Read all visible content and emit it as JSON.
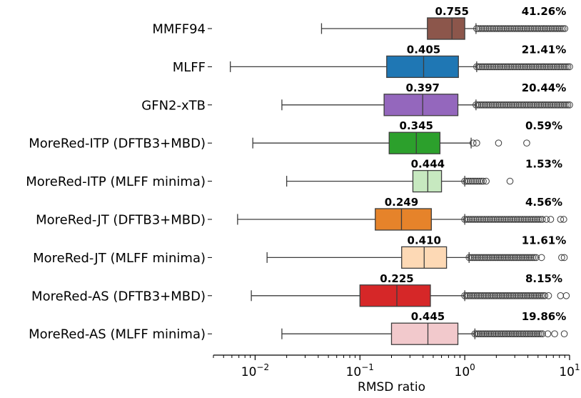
{
  "chart_data": {
    "type": "boxplot",
    "orientation": "horizontal",
    "xscale": "log",
    "xlabel": "RMSD ratio",
    "xlim": [
      0.004,
      10
    ],
    "xticks": [
      {
        "value": 0.01,
        "base": "10",
        "exp": "−2"
      },
      {
        "value": 0.1,
        "base": "10",
        "exp": "−1"
      },
      {
        "value": 1,
        "base": "10",
        "exp": "0"
      },
      {
        "value": 10,
        "base": "10",
        "exp": "1"
      }
    ],
    "series": [
      {
        "name": "MMFF94",
        "color": "#8c564b",
        "whisker_low": 0.043,
        "q1": 0.44,
        "median": 0.755,
        "q3": 1.0,
        "whisker_high": 1.28,
        "outliers_from": 1.3,
        "outliers_to": 9.0,
        "outliers_dense": true,
        "median_label": "0.755",
        "outlier_pct": "41.26%"
      },
      {
        "name": "MLFF",
        "color": "#1f77b4",
        "whisker_low": 0.0058,
        "q1": 0.18,
        "median": 0.405,
        "q3": 0.87,
        "whisker_high": 1.3,
        "outliers_from": 1.3,
        "outliers_to": 10.0,
        "outliers_dense": true,
        "median_label": "0.405",
        "outlier_pct": "21.41%"
      },
      {
        "name": "GFN2-xTB",
        "color": "#9467bd",
        "whisker_low": 0.018,
        "q1": 0.17,
        "median": 0.397,
        "q3": 0.86,
        "whisker_high": 1.28,
        "outliers_from": 1.28,
        "outliers_to": 10.0,
        "outliers_dense": true,
        "median_label": "0.397",
        "outlier_pct": "20.44%"
      },
      {
        "name": "MoreRed-ITP (DFTB3+MBD)",
        "color": "#2ca02c",
        "whisker_low": 0.0095,
        "q1": 0.19,
        "median": 0.345,
        "q3": 0.58,
        "whisker_high": 1.15,
        "outliers_from": 1.2,
        "outliers_to": 1.3,
        "outliers_dense": false,
        "extra_outliers": [
          2.1,
          3.9
        ],
        "median_label": "0.345",
        "outlier_pct": "0.59%"
      },
      {
        "name": "MoreRed-ITP (MLFF minima)",
        "color": "#c7e9c0",
        "whisker_low": 0.02,
        "q1": 0.32,
        "median": 0.444,
        "q3": 0.6,
        "whisker_high": 1.0,
        "outliers_from": 1.0,
        "outliers_to": 1.5,
        "outliers_dense": true,
        "extra_outliers": [
          1.6,
          2.7
        ],
        "median_label": "0.444",
        "outlier_pct": "1.53%"
      },
      {
        "name": "MoreRed-JT (DFTB3+MBD)",
        "color": "#e6832a",
        "whisker_low": 0.0068,
        "q1": 0.14,
        "median": 0.249,
        "q3": 0.48,
        "whisker_high": 1.0,
        "outliers_from": 1.0,
        "outliers_to": 5.5,
        "outliers_dense": true,
        "extra_outliers": [
          6.0,
          6.6,
          8.2,
          8.8
        ],
        "median_label": "0.249",
        "outlier_pct": "4.56%"
      },
      {
        "name": "MoreRed-JT (MLFF minima)",
        "color": "#fdd9b5",
        "whisker_low": 0.013,
        "q1": 0.25,
        "median": 0.41,
        "q3": 0.67,
        "whisker_high": 1.1,
        "outliers_from": 1.1,
        "outliers_to": 4.8,
        "outliers_dense": true,
        "extra_outliers": [
          5.4,
          8.4,
          8.9
        ],
        "median_label": "0.410",
        "outlier_pct": "11.61%"
      },
      {
        "name": "MoreRed-AS (DFTB3+MBD)",
        "color": "#d62728",
        "whisker_low": 0.0092,
        "q1": 0.1,
        "median": 0.225,
        "q3": 0.47,
        "whisker_high": 1.0,
        "outliers_from": 1.0,
        "outliers_to": 5.8,
        "outliers_dense": true,
        "extra_outliers": [
          6.3,
          8.2,
          9.3
        ],
        "median_label": "0.225",
        "outlier_pct": "8.15%"
      },
      {
        "name": "MoreRed-AS (MLFF minima)",
        "color": "#f2c9cc",
        "whisker_low": 0.018,
        "q1": 0.2,
        "median": 0.445,
        "q3": 0.86,
        "whisker_high": 1.25,
        "outliers_from": 1.25,
        "outliers_to": 5.5,
        "outliers_dense": true,
        "extra_outliers": [
          6.2,
          7.2,
          8.9
        ],
        "median_label": "0.445",
        "outlier_pct": "19.86%"
      }
    ]
  }
}
